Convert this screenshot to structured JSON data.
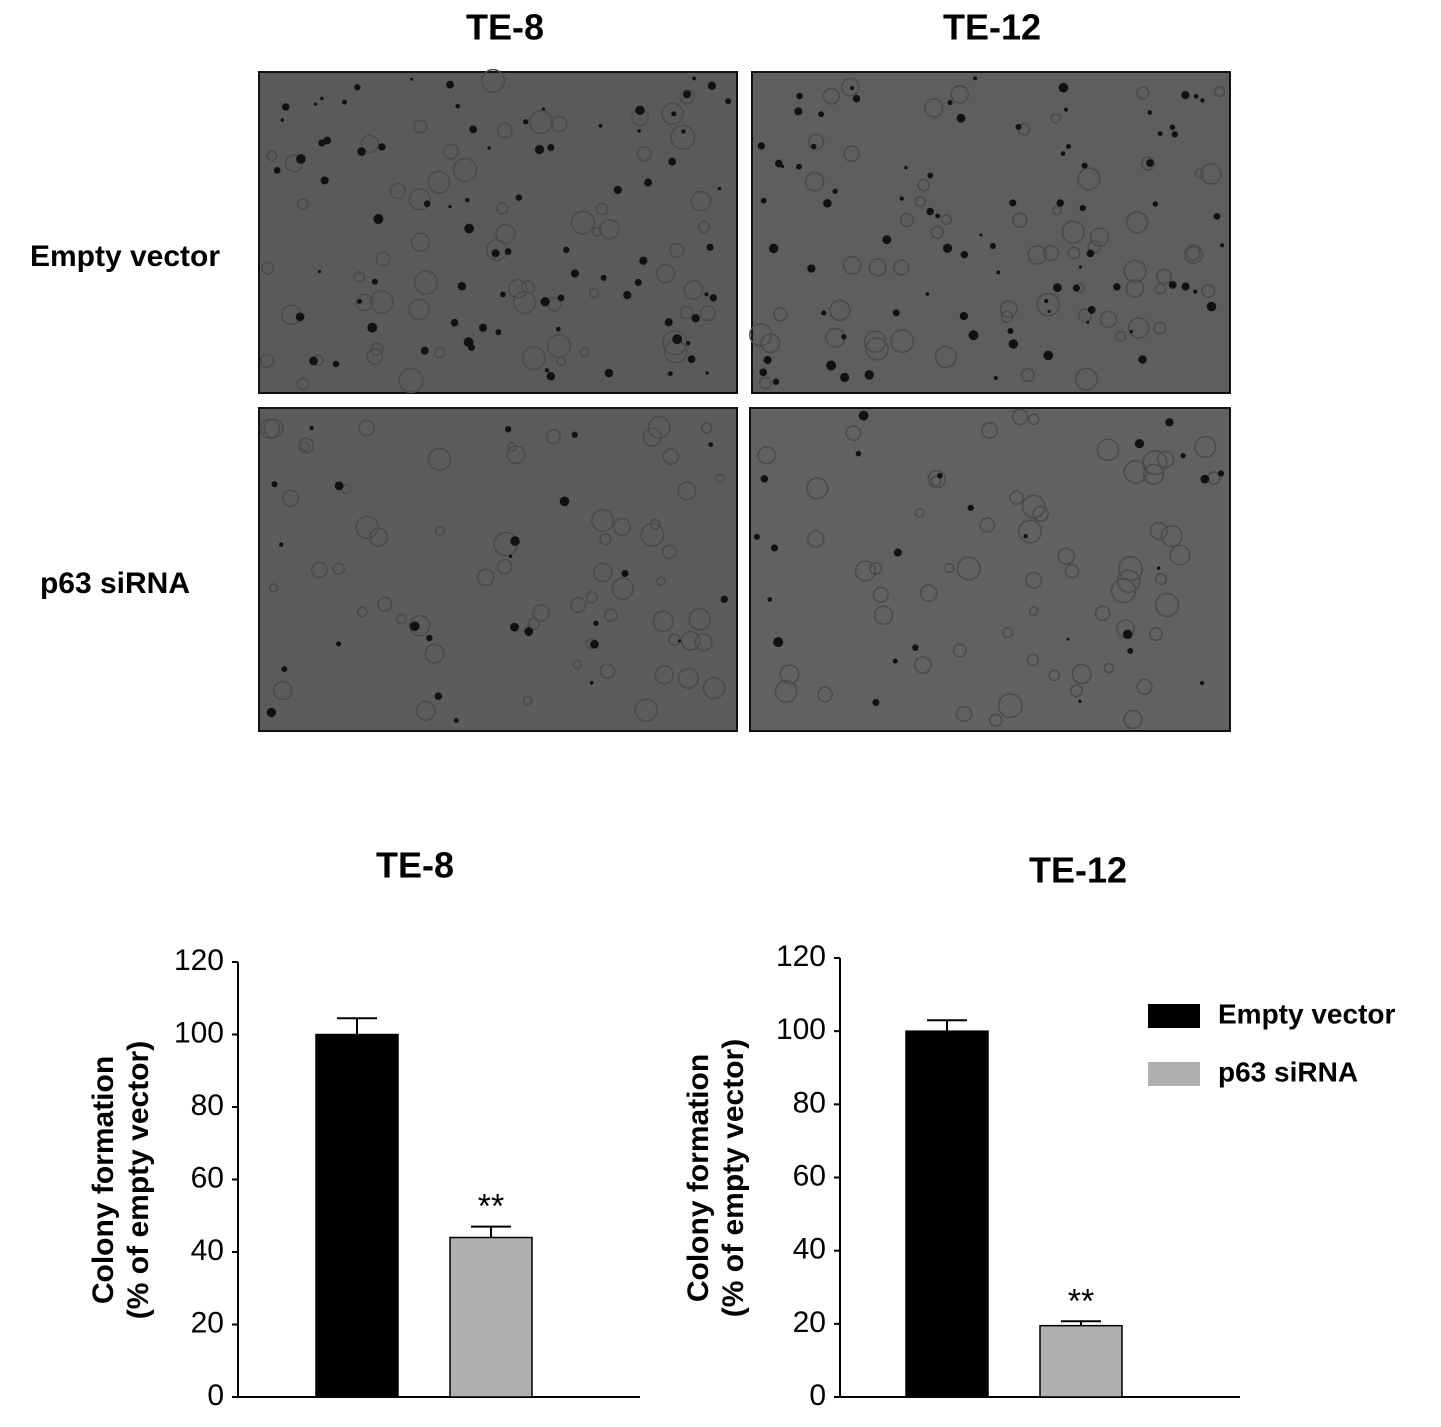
{
  "panels": {
    "columns": [
      "TE-8",
      "TE-12"
    ],
    "rows": [
      "Empty vector",
      "p63 siRNA"
    ]
  },
  "chart_data": [
    {
      "type": "bar",
      "title": "TE-8",
      "ylabel": [
        "Colony formation",
        "(% of empty vector)"
      ],
      "values": [
        100,
        44
      ],
      "errors": [
        4.5,
        3
      ],
      "colors": [
        "#000000",
        "#b0b0b0"
      ],
      "value_annotations": [
        null,
        "**"
      ],
      "ylim": [
        0,
        120
      ],
      "yticks": [
        0,
        20,
        40,
        60,
        80,
        100,
        120
      ]
    },
    {
      "type": "bar",
      "title": "TE-12",
      "ylabel": [
        "Colony formation",
        "(% of empty vector)"
      ],
      "values": [
        100,
        19.5
      ],
      "errors": [
        3,
        1.2
      ],
      "colors": [
        "#000000",
        "#b0b0b0"
      ],
      "value_annotations": [
        null,
        "**"
      ],
      "legend": [
        "Empty vector",
        "p63 siRNA"
      ],
      "ylim": [
        0,
        120
      ],
      "yticks": [
        0,
        20,
        40,
        60,
        80,
        100,
        120
      ]
    }
  ]
}
